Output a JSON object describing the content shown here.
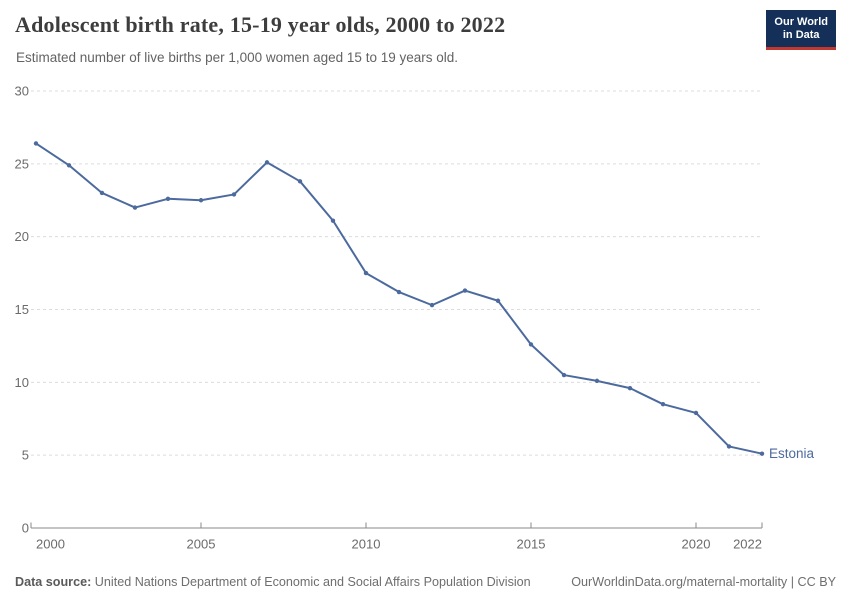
{
  "header": {
    "title": "Adolescent birth rate, 15-19 year olds, 2000 to 2022",
    "subtitle": "Estimated number of live births per 1,000 women aged 15 to 19 years old.",
    "logo_line1": "Our World",
    "logo_line2": "in Data"
  },
  "chart_data": {
    "type": "line",
    "title": "Adolescent birth rate, 15-19 year olds, 2000 to 2022",
    "subtitle": "Estimated number of live births per 1,000 women aged 15 to 19 years old.",
    "xlabel": "",
    "ylabel": "",
    "x": [
      2000,
      2001,
      2002,
      2003,
      2004,
      2005,
      2006,
      2007,
      2008,
      2009,
      2010,
      2011,
      2012,
      2013,
      2014,
      2015,
      2016,
      2017,
      2018,
      2019,
      2020,
      2021,
      2022
    ],
    "series": [
      {
        "name": "Estonia",
        "color": "#4c6a9e",
        "values": [
          26.4,
          24.9,
          23.0,
          22.0,
          22.6,
          22.5,
          22.9,
          25.1,
          23.8,
          21.1,
          17.5,
          16.2,
          15.3,
          16.3,
          15.6,
          12.6,
          10.5,
          10.1,
          9.6,
          8.5,
          7.9,
          5.6,
          5.1
        ]
      }
    ],
    "end_label": "Estonia",
    "xlim": [
      2000,
      2022
    ],
    "ylim": [
      0,
      30
    ],
    "x_ticks": [
      2000,
      2005,
      2010,
      2015,
      2020,
      2022
    ],
    "y_ticks": [
      0,
      5,
      10,
      15,
      20,
      25,
      30
    ],
    "grid": "horizontal-dashed",
    "legend_position": "end-of-line"
  },
  "footer": {
    "datasource_label": "Data source:",
    "datasource_value": "United Nations Department of Economic and Social Affairs Population Division",
    "credit": "OurWorldinData.org/maternal-mortality | CC BY"
  },
  "colors": {
    "series": "#4c6a9e",
    "gridline": "#dcdcdc",
    "axis": "#8a8a8a",
    "tick_label": "#6b6b6b",
    "title": "#3d3d3d",
    "subtitle": "#636363",
    "footer": "#6e6e6e",
    "logo_bg": "#143059",
    "logo_accent": "#c1382e"
  }
}
